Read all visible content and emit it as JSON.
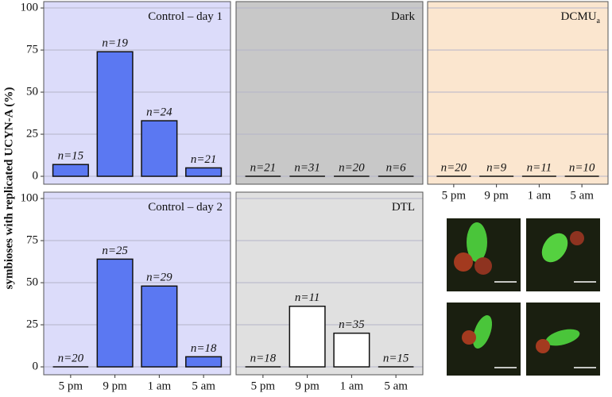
{
  "chart_data": [
    {
      "type": "bar",
      "title": "Control – day 1",
      "background": "#dcdcfa",
      "color": "#5b78f2",
      "values": [
        7,
        74,
        33,
        5
      ],
      "annotations": [
        "n=15",
        "n=19",
        "n=24",
        "n=21"
      ],
      "ylim": [
        -4.7,
        103.8
      ],
      "yticks": [
        0,
        25,
        50,
        75,
        100
      ],
      "y_label": "symbioses with replicated UCYN-A (%)"
    },
    {
      "type": "bar",
      "title": "Dark",
      "background": "#c8c8c8",
      "color": "#5b78f2",
      "values": [
        0,
        0,
        0,
        0
      ],
      "annotations": [
        "n=21",
        "n=31",
        "n=20",
        "n=6"
      ],
      "ylim": [
        -4.7,
        103.8
      ],
      "yticks": [
        0,
        25,
        50,
        75,
        100
      ]
    },
    {
      "type": "bar",
      "title": "DCMU",
      "title_subscript": "a",
      "background": "#fbe6cf",
      "color": "#5b78f2",
      "categories": [
        "5 pm",
        "9 pm",
        "1 am",
        "5 am"
      ],
      "values": [
        0,
        0,
        0,
        0
      ],
      "annotations": [
        "n=20",
        "n=9",
        "n=11",
        "n=10"
      ],
      "ylim": [
        -4.7,
        103.8
      ],
      "yticks": [
        0,
        25,
        50,
        75,
        100
      ]
    },
    {
      "type": "bar",
      "title": "Control – day 2",
      "background": "#dcdcfa",
      "color": "#5b78f2",
      "categories": [
        "5 pm",
        "9 pm",
        "1 am",
        "5 am"
      ],
      "values": [
        0,
        64,
        48,
        6
      ],
      "annotations": [
        "n=20",
        "n=25",
        "n=29",
        "n=18"
      ],
      "ylim": [
        -4.7,
        103.8
      ],
      "yticks": [
        0,
        25,
        50,
        75,
        100
      ]
    },
    {
      "type": "bar",
      "title": "DTL",
      "background": "#e0e0e0",
      "color": "#ffffff",
      "categories": [
        "5 pm",
        "9 pm",
        "1 am",
        "5 am"
      ],
      "values": [
        0,
        36,
        20,
        0
      ],
      "annotations": [
        "n=18",
        "n=11",
        "n=35",
        "n=15"
      ],
      "ylim": [
        -4.7,
        103.8
      ],
      "yticks": [
        0,
        25,
        50,
        75,
        100
      ]
    }
  ]
}
